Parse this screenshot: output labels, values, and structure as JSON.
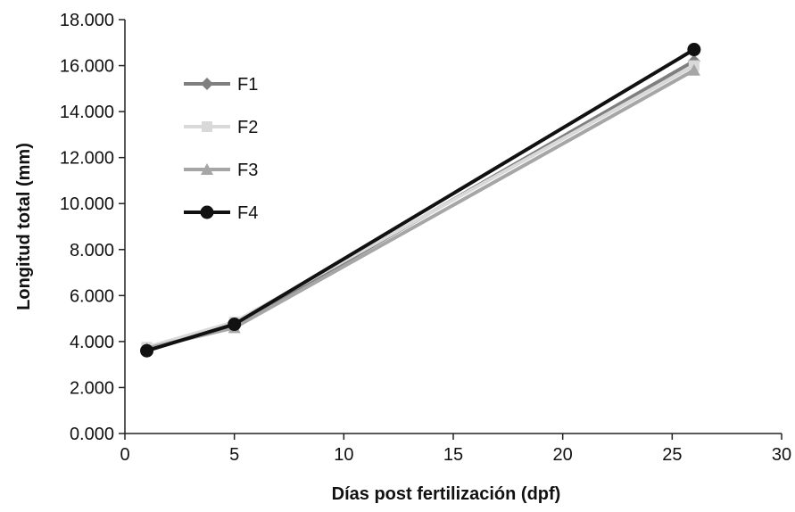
{
  "chart_data": {
    "type": "line",
    "title": "",
    "xlabel": "Días post fertilización (dpf)",
    "ylabel": "Longitud total (mm)",
    "xlim": [
      0,
      30
    ],
    "ylim": [
      0,
      18
    ],
    "xticks": [
      0,
      5,
      10,
      15,
      20,
      25,
      30
    ],
    "xtick_labels": [
      "0",
      "5",
      "10",
      "15",
      "20",
      "25",
      "30"
    ],
    "yticks": [
      0,
      2,
      4,
      6,
      8,
      10,
      12,
      14,
      16,
      18
    ],
    "ytick_labels": [
      "0.000",
      "2.000",
      "4.000",
      "6.000",
      "8.000",
      "10.000",
      "12.000",
      "14.000",
      "16.000",
      "18.000"
    ],
    "grid": false,
    "legend_position": "top-left",
    "series": [
      {
        "name": "F1",
        "color": "#7f7f7f",
        "marker": "diamond",
        "x": [
          1,
          5,
          26
        ],
        "y": [
          3.65,
          4.7,
          16.2
        ]
      },
      {
        "name": "F2",
        "color": "#d9d9d9",
        "marker": "square",
        "x": [
          1,
          5,
          26
        ],
        "y": [
          3.75,
          4.85,
          16.0
        ]
      },
      {
        "name": "F3",
        "color": "#a6a6a6",
        "marker": "triangle",
        "x": [
          1,
          5,
          26
        ],
        "y": [
          3.7,
          4.6,
          15.8
        ]
      },
      {
        "name": "F4",
        "color": "#111111",
        "marker": "circle",
        "x": [
          1,
          5,
          26
        ],
        "y": [
          3.6,
          4.75,
          16.7
        ]
      }
    ]
  }
}
